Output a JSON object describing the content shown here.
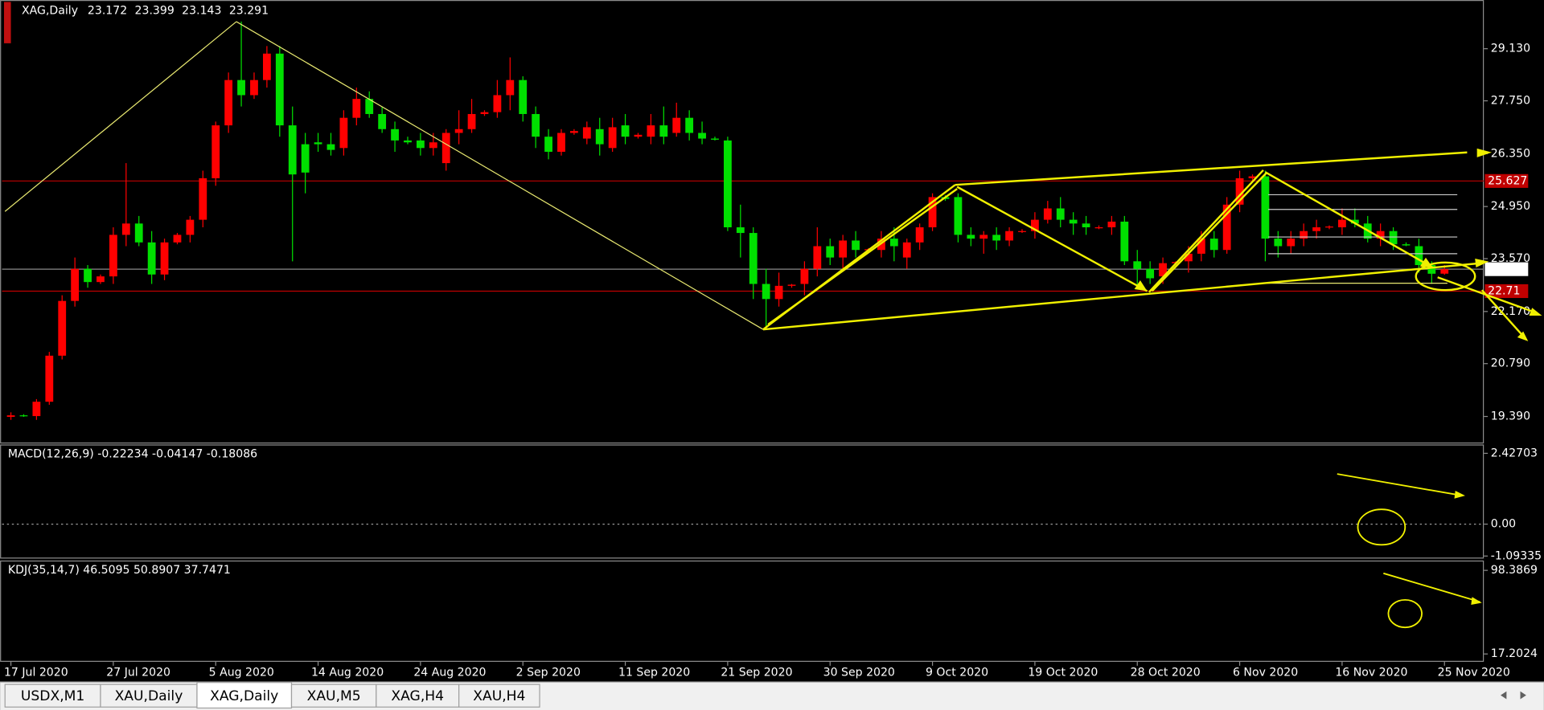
{
  "chart_data": [
    {
      "type": "candlestick",
      "title": "XAG,Daily",
      "up_color": "#ff0000",
      "down_color": "#00e000",
      "ylim": [
        18.7,
        30.42
      ],
      "yticks": [
        {
          "value": 29.13,
          "label": "29.130"
        },
        {
          "value": 27.75,
          "label": "27.750"
        },
        {
          "value": 26.35,
          "label": "26.350"
        },
        {
          "value": 24.95,
          "label": "24.950"
        },
        {
          "value": 23.57,
          "label": "23.570"
        },
        {
          "value": 22.17,
          "label": "22.170"
        },
        {
          "value": 20.79,
          "label": "20.790"
        },
        {
          "value": 19.39,
          "label": "19.390"
        }
      ],
      "hlines": [
        {
          "value": 25.627,
          "color": "#c00000"
        },
        {
          "value": 22.71,
          "color": "#c00000"
        }
      ],
      "categories": [
        "17 Jul 2020",
        null,
        null,
        null,
        null,
        null,
        null,
        null,
        "27 Jul 2020",
        null,
        null,
        null,
        null,
        null,
        null,
        null,
        "5 Aug 2020",
        null,
        null,
        null,
        null,
        null,
        null,
        null,
        "14 Aug 2020",
        null,
        null,
        null,
        null,
        null,
        null,
        null,
        "24 Aug 2020",
        null,
        null,
        null,
        null,
        null,
        null,
        null,
        "2 Sep 2020",
        null,
        null,
        null,
        null,
        null,
        null,
        null,
        "11 Sep 2020",
        null,
        null,
        null,
        null,
        null,
        null,
        null,
        "21 Sep 2020",
        null,
        null,
        null,
        null,
        null,
        null,
        null,
        "30 Sep 2020",
        null,
        null,
        null,
        null,
        null,
        null,
        null,
        "9 Oct 2020",
        null,
        null,
        null,
        null,
        null,
        null,
        null,
        "19 Oct 2020",
        null,
        null,
        null,
        null,
        null,
        null,
        null,
        "28 Oct 2020",
        null,
        null,
        null,
        null,
        null,
        null,
        null,
        "6 Nov 2020",
        null,
        null,
        null,
        null,
        null,
        null,
        null,
        "16 Nov 2020",
        null,
        null,
        null,
        null,
        null,
        null,
        null,
        "25 Nov 2020"
      ],
      "candles": [
        [
          19.38,
          19.5,
          19.3,
          19.42
        ],
        [
          19.42,
          19.45,
          19.38,
          19.4
        ],
        [
          19.4,
          19.85,
          19.3,
          19.78
        ],
        [
          19.78,
          21.1,
          19.7,
          21.0
        ],
        [
          21.0,
          22.6,
          20.9,
          22.45
        ],
        [
          22.45,
          23.6,
          22.3,
          23.3
        ],
        [
          23.3,
          23.4,
          22.8,
          22.95
        ],
        [
          22.95,
          23.15,
          22.9,
          23.1
        ],
        [
          23.1,
          24.4,
          22.9,
          24.2
        ],
        [
          24.2,
          26.1,
          23.9,
          24.5
        ],
        [
          24.5,
          24.7,
          23.9,
          24.0
        ],
        [
          24.0,
          24.3,
          22.9,
          23.15
        ],
        [
          23.15,
          24.1,
          23.0,
          24.0
        ],
        [
          24.0,
          24.25,
          23.95,
          24.2
        ],
        [
          24.2,
          24.7,
          24.0,
          24.6
        ],
        [
          24.6,
          25.9,
          24.4,
          25.7
        ],
        [
          25.7,
          27.2,
          25.5,
          27.1
        ],
        [
          27.1,
          28.5,
          26.9,
          28.3
        ],
        [
          28.3,
          29.85,
          27.6,
          27.9
        ],
        [
          27.9,
          28.5,
          27.8,
          28.3
        ],
        [
          28.3,
          29.2,
          28.1,
          29.0
        ],
        [
          29.0,
          29.2,
          26.8,
          27.1
        ],
        [
          27.1,
          27.6,
          23.5,
          25.8
        ],
        [
          26.6,
          26.9,
          25.3,
          25.85
        ],
        [
          26.65,
          26.9,
          26.4,
          26.6
        ],
        [
          26.6,
          26.9,
          26.3,
          26.45
        ],
        [
          26.5,
          27.5,
          26.3,
          27.3
        ],
        [
          27.3,
          28.1,
          27.1,
          27.8
        ],
        [
          27.8,
          28.0,
          27.3,
          27.4
        ],
        [
          27.4,
          27.6,
          26.9,
          27.0
        ],
        [
          27.0,
          27.2,
          26.4,
          26.7
        ],
        [
          26.7,
          26.8,
          26.6,
          26.65
        ],
        [
          26.7,
          26.9,
          26.3,
          26.5
        ],
        [
          26.5,
          26.9,
          26.3,
          26.65
        ],
        [
          26.1,
          27.0,
          25.9,
          26.9
        ],
        [
          26.9,
          27.5,
          26.6,
          27.0
        ],
        [
          27.0,
          27.8,
          26.9,
          27.4
        ],
        [
          27.4,
          27.5,
          27.35,
          27.45
        ],
        [
          27.45,
          28.3,
          27.3,
          27.9
        ],
        [
          27.9,
          28.9,
          27.5,
          28.3
        ],
        [
          28.3,
          28.4,
          27.2,
          27.4
        ],
        [
          27.4,
          27.6,
          26.5,
          26.8
        ],
        [
          26.8,
          27.0,
          26.2,
          26.4
        ],
        [
          26.4,
          27.0,
          26.3,
          26.9
        ],
        [
          26.9,
          27.0,
          26.85,
          26.95
        ],
        [
          26.75,
          27.2,
          26.6,
          27.05
        ],
        [
          27.0,
          27.3,
          26.3,
          26.6
        ],
        [
          26.5,
          27.3,
          26.4,
          27.05
        ],
        [
          27.1,
          27.4,
          26.6,
          26.8
        ],
        [
          26.8,
          26.9,
          26.75,
          26.85
        ],
        [
          26.8,
          27.4,
          26.6,
          27.1
        ],
        [
          27.1,
          27.6,
          26.6,
          26.8
        ],
        [
          26.9,
          27.7,
          26.8,
          27.3
        ],
        [
          27.3,
          27.5,
          26.7,
          26.9
        ],
        [
          26.9,
          27.2,
          26.6,
          26.75
        ],
        [
          26.75,
          26.8,
          26.7,
          26.72
        ],
        [
          26.7,
          26.8,
          24.3,
          24.4
        ],
        [
          24.4,
          25.0,
          23.6,
          24.25
        ],
        [
          24.25,
          24.4,
          22.5,
          22.9
        ],
        [
          22.9,
          23.3,
          21.7,
          22.5
        ],
        [
          22.5,
          23.2,
          22.3,
          22.85
        ],
        [
          22.85,
          22.9,
          22.8,
          22.88
        ],
        [
          22.9,
          23.5,
          22.6,
          23.3
        ],
        [
          23.3,
          24.4,
          23.1,
          23.9
        ],
        [
          23.9,
          24.1,
          23.4,
          23.6
        ],
        [
          23.6,
          24.2,
          23.3,
          24.05
        ],
        [
          24.05,
          24.3,
          23.6,
          23.8
        ],
        [
          23.8,
          23.85,
          23.75,
          23.82
        ],
        [
          23.8,
          24.3,
          23.6,
          24.1
        ],
        [
          24.1,
          24.4,
          23.5,
          23.9
        ],
        [
          23.6,
          24.1,
          23.3,
          24.0
        ],
        [
          24.0,
          24.5,
          23.8,
          24.4
        ],
        [
          24.4,
          25.3,
          24.3,
          25.2
        ],
        [
          25.2,
          25.25,
          25.1,
          25.15
        ],
        [
          25.2,
          25.3,
          24.0,
          24.2
        ],
        [
          24.2,
          24.4,
          23.9,
          24.1
        ],
        [
          24.1,
          24.3,
          23.7,
          24.2
        ],
        [
          24.2,
          24.4,
          23.8,
          24.05
        ],
        [
          24.05,
          24.4,
          23.9,
          24.3
        ],
        [
          24.3,
          24.35,
          24.25,
          24.3
        ],
        [
          24.3,
          24.8,
          24.1,
          24.6
        ],
        [
          24.6,
          25.1,
          24.5,
          24.9
        ],
        [
          24.9,
          25.2,
          24.4,
          24.6
        ],
        [
          24.6,
          24.8,
          24.2,
          24.5
        ],
        [
          24.5,
          24.7,
          24.2,
          24.4
        ],
        [
          24.4,
          24.45,
          24.35,
          24.4
        ],
        [
          24.4,
          24.7,
          24.2,
          24.55
        ],
        [
          24.55,
          24.7,
          23.4,
          23.5
        ],
        [
          23.5,
          23.8,
          22.8,
          23.3
        ],
        [
          23.3,
          23.5,
          22.9,
          23.05
        ],
        [
          23.1,
          23.6,
          22.9,
          23.45
        ],
        [
          23.45,
          23.5,
          23.4,
          23.48
        ],
        [
          23.5,
          23.9,
          23.2,
          23.7
        ],
        [
          23.7,
          24.3,
          23.5,
          24.1
        ],
        [
          24.1,
          24.3,
          23.6,
          23.8
        ],
        [
          23.8,
          25.2,
          23.7,
          25.0
        ],
        [
          25.0,
          25.9,
          24.8,
          25.7
        ],
        [
          25.7,
          25.8,
          25.6,
          25.75
        ],
        [
          25.75,
          25.9,
          23.5,
          24.1
        ],
        [
          24.1,
          24.3,
          23.6,
          23.9
        ],
        [
          23.9,
          24.3,
          23.7,
          24.1
        ],
        [
          24.1,
          24.5,
          23.9,
          24.3
        ],
        [
          24.3,
          24.6,
          24.1,
          24.4
        ],
        [
          24.4,
          24.45,
          24.35,
          24.42
        ],
        [
          24.4,
          24.9,
          24.2,
          24.6
        ],
        [
          24.6,
          24.9,
          24.4,
          24.5
        ],
        [
          24.5,
          24.7,
          24.0,
          24.1
        ],
        [
          24.1,
          24.5,
          23.9,
          24.3
        ],
        [
          24.3,
          24.4,
          23.8,
          23.95
        ],
        [
          23.95,
          24.0,
          23.9,
          23.92
        ],
        [
          23.9,
          24.1,
          23.2,
          23.4
        ],
        [
          23.4,
          23.5,
          22.9,
          23.17
        ],
        [
          23.172,
          23.399,
          23.143,
          23.291
        ]
      ]
    },
    {
      "type": "indicator",
      "title": "MACD(12,26,9) -0.22234 -0.04147 -0.18086",
      "ylim": [
        -1.18,
        2.73
      ],
      "yticks": [
        2.42703,
        {
          "value": 0,
          "label": "0.00"
        },
        -1.09335
      ],
      "zero_line": true
    },
    {
      "type": "indicator",
      "title": "KDJ(35,14,7) 46.5095 50.8907 37.7471",
      "ylim": [
        10.52,
        106.98
      ],
      "yticks": [
        98.3869,
        17.2024
      ],
      "zero_line": false
    }
  ],
  "tabs": [
    "USDX,M1",
    "XAU,Daily",
    "XAG,Daily",
    "XAU,M5",
    "XAG,H4",
    "XAU,H4"
  ],
  "active_tab": 2
}
